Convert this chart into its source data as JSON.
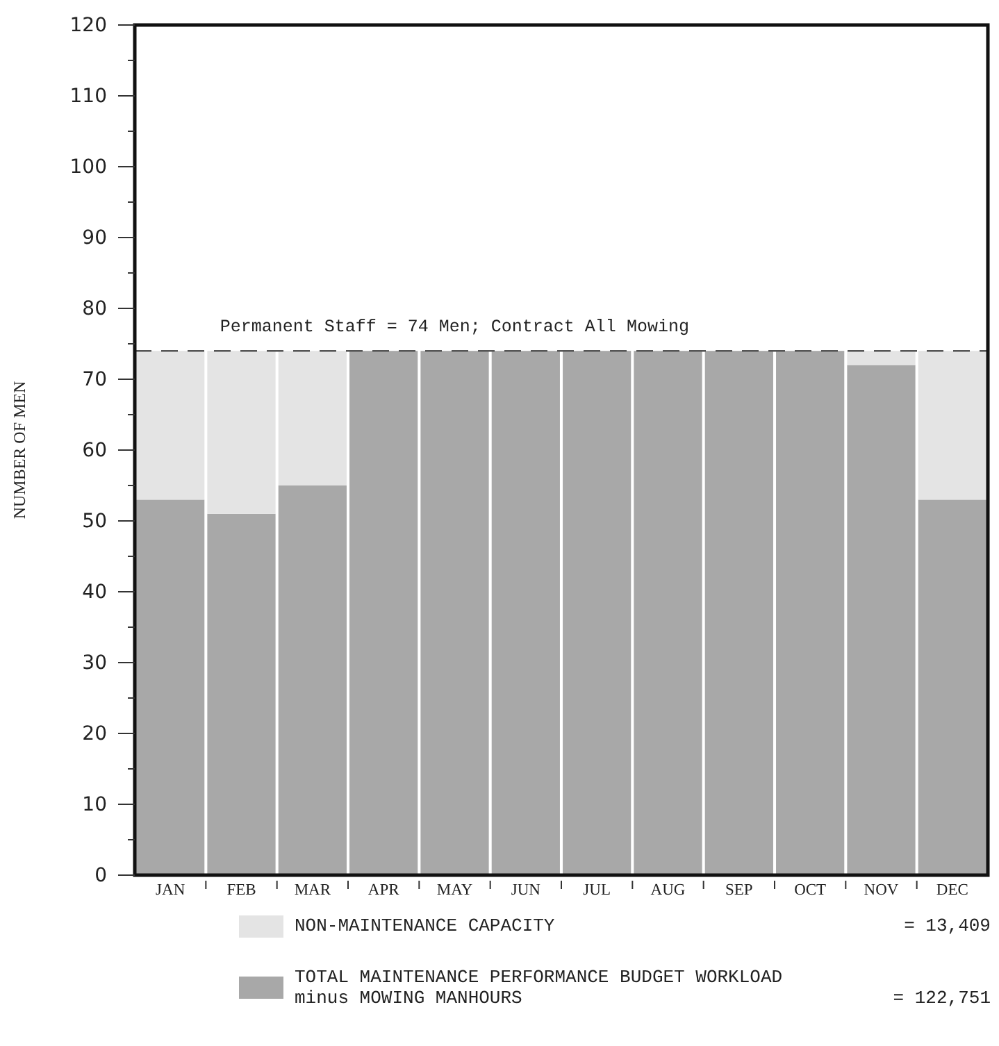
{
  "chart_data": {
    "type": "bar",
    "stacked": true,
    "ylabel": "NUMBER OF MEN",
    "categories": [
      "JAN",
      "FEB",
      "MAR",
      "APR",
      "MAY",
      "JUN",
      "JUL",
      "AUG",
      "SEP",
      "OCT",
      "NOV",
      "DEC"
    ],
    "series": [
      {
        "name": "TOTAL MAINTENANCE PERFORMANCE BUDGET WORKLOAD minus MOWING MANHOURS",
        "color": "#a8a8a8",
        "values": [
          53,
          51,
          55,
          74,
          74,
          74,
          74,
          74,
          74,
          74,
          72,
          53
        ]
      },
      {
        "name": "NON-MAINTENANCE CAPACITY",
        "color": "#e4e4e4",
        "values": [
          21,
          23,
          19,
          0,
          0,
          0,
          0,
          0,
          0,
          0,
          2,
          21
        ]
      }
    ],
    "ylim": [
      0,
      120
    ],
    "yticks": [
      {
        "value": 0,
        "label": "0"
      },
      {
        "value": 5,
        "label": null
      },
      10,
      {
        "value": 15,
        "label": null
      },
      20,
      {
        "value": 25,
        "label": null
      },
      30,
      {
        "value": 35,
        "label": null
      },
      40,
      {
        "value": 45,
        "label": null
      },
      50,
      {
        "value": 55,
        "label": null
      },
      60,
      {
        "value": 65,
        "label": null
      },
      70,
      {
        "value": 75,
        "label": null
      },
      80,
      {
        "value": 85,
        "label": null
      },
      90,
      {
        "value": 95,
        "label": null
      },
      100,
      {
        "value": 105,
        "label": null
      },
      110,
      {
        "value": 115,
        "label": null
      },
      120
    ],
    "ref_lines": [
      {
        "axis": "y",
        "value": 74,
        "label": "Permanent Staff = 74 Men; Contract All Mowing",
        "line_style": "dashed",
        "color": "#555555"
      }
    ],
    "annotations": [
      "= 13,409",
      "= 122,751"
    ],
    "legend": "bottom",
    "grid": false
  }
}
